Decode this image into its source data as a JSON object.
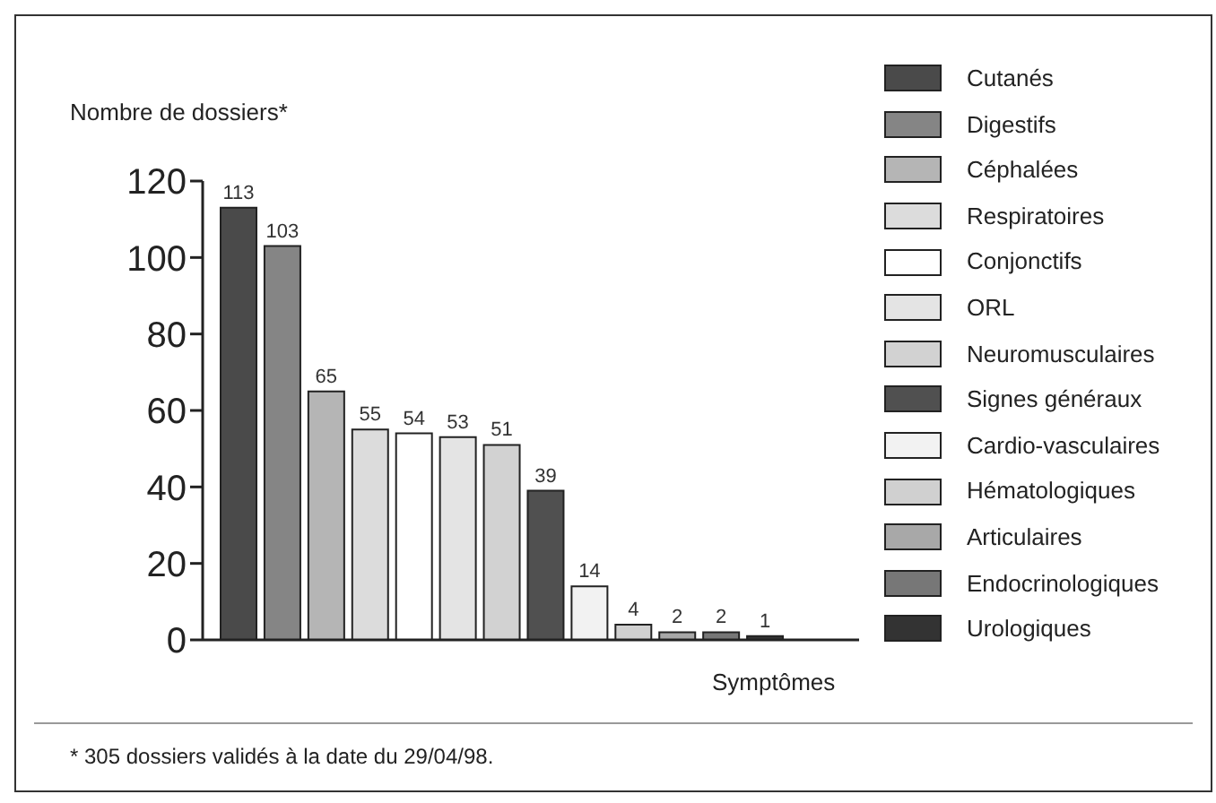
{
  "chart_data": {
    "type": "bar",
    "ylabel": "Nombre de dossiers*",
    "xlabel": "Symptômes",
    "stacked": true,
    "categories": [
      null,
      null,
      null,
      null,
      null,
      null,
      null,
      null,
      null,
      null,
      null,
      null,
      null
    ],
    "series": [
      {
        "name": "Cutanés",
        "color": "#4a4a4a",
        "values": [
          113,
          null,
          null,
          null,
          null,
          null,
          null,
          null,
          null,
          null,
          null,
          null,
          null
        ]
      },
      {
        "name": "Digestifs",
        "color": "#858585",
        "values": [
          null,
          103,
          null,
          null,
          null,
          null,
          null,
          null,
          null,
          null,
          null,
          null,
          null
        ]
      },
      {
        "name": "Céphalées",
        "color": "#b5b5b5",
        "values": [
          null,
          null,
          65,
          null,
          null,
          null,
          null,
          null,
          null,
          null,
          null,
          null,
          null
        ]
      },
      {
        "name": "Respiratoires",
        "color": "#dcdcdc",
        "values": [
          null,
          null,
          null,
          55,
          null,
          null,
          null,
          null,
          null,
          null,
          null,
          null,
          null
        ]
      },
      {
        "name": "Conjonctifs",
        "color": "#ffffff",
        "values": [
          null,
          null,
          null,
          null,
          54,
          null,
          null,
          null,
          null,
          null,
          null,
          null,
          null
        ]
      },
      {
        "name": "ORL",
        "color": "#e4e4e4",
        "values": [
          null,
          null,
          null,
          null,
          null,
          53,
          null,
          null,
          null,
          null,
          null,
          null,
          null
        ]
      },
      {
        "name": "Neuromusculaires",
        "color": "#d2d2d2",
        "values": [
          null,
          null,
          null,
          null,
          null,
          null,
          51,
          null,
          null,
          null,
          null,
          null,
          null
        ]
      },
      {
        "name": "Signes généraux",
        "color": "#505050",
        "values": [
          null,
          null,
          null,
          null,
          null,
          null,
          null,
          39,
          null,
          null,
          null,
          null,
          null
        ]
      },
      {
        "name": "Cardio-vasculaires",
        "color": "#f2f2f2",
        "values": [
          null,
          null,
          null,
          null,
          null,
          null,
          null,
          null,
          14,
          null,
          null,
          null,
          null
        ]
      },
      {
        "name": "Hématologiques",
        "color": "#d0d0d0",
        "values": [
          null,
          null,
          null,
          null,
          null,
          null,
          null,
          null,
          null,
          4,
          null,
          null,
          null
        ]
      },
      {
        "name": "Articulaires",
        "color": "#a8a8a8",
        "values": [
          null,
          null,
          null,
          null,
          null,
          null,
          null,
          null,
          null,
          null,
          2,
          null,
          null
        ]
      },
      {
        "name": "Endocrinologiques",
        "color": "#777777",
        "values": [
          null,
          null,
          null,
          null,
          null,
          null,
          null,
          null,
          null,
          null,
          null,
          2,
          null
        ]
      },
      {
        "name": "Urologiques",
        "color": "#333333",
        "values": [
          null,
          null,
          null,
          null,
          null,
          null,
          null,
          null,
          null,
          null,
          null,
          null,
          1
        ]
      }
    ],
    "ylim": [
      0,
      120
    ],
    "yticks": [
      0,
      20,
      40,
      60,
      80,
      100,
      120
    ],
    "data_labels": true,
    "legend": "right",
    "tick_labels": "y",
    "annotations": [
      "* 305 dossiers validés à la date du 29/04/98."
    ]
  }
}
